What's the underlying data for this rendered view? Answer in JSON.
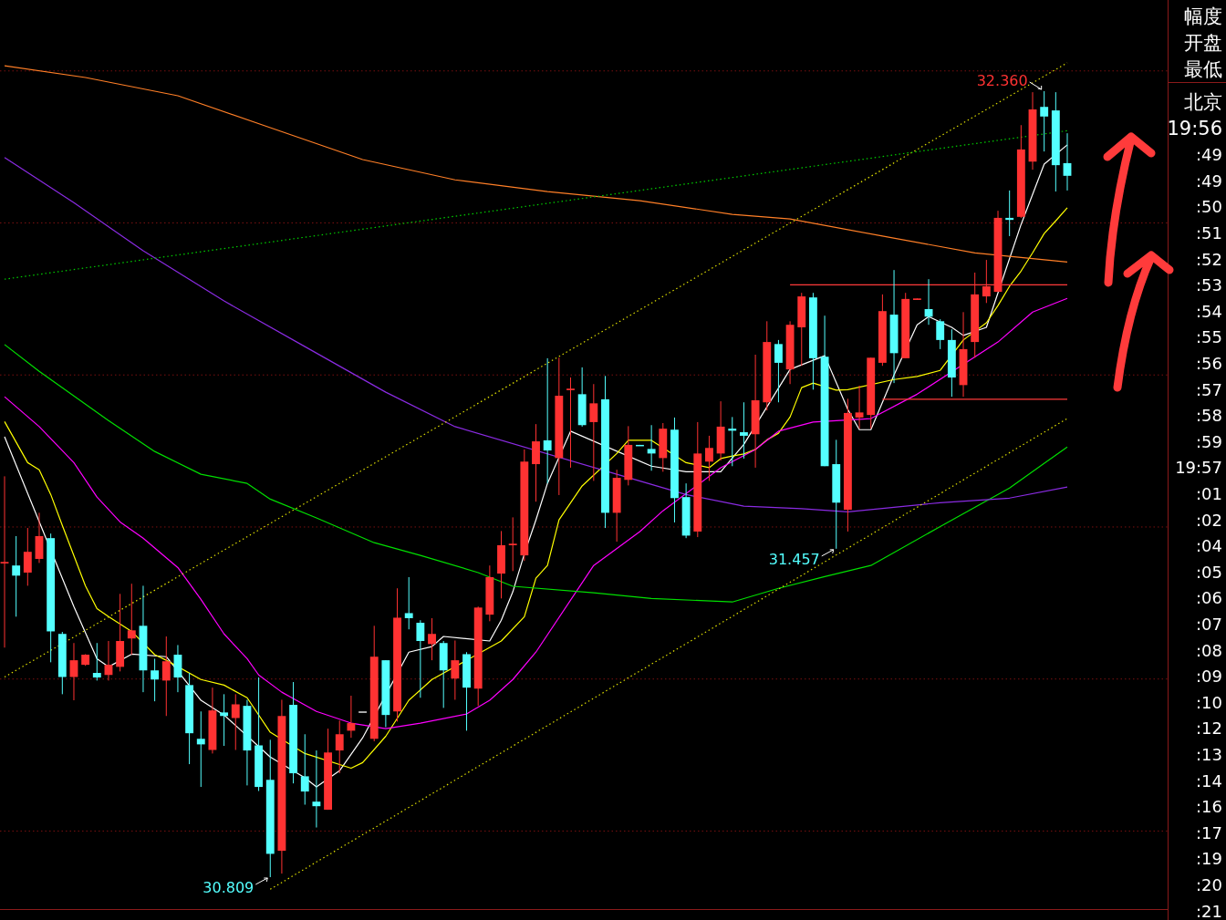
{
  "chart_data": {
    "type": "candlestick",
    "categories": [
      null,
      null,
      null,
      null,
      null,
      null,
      null,
      null,
      null,
      null,
      null,
      null,
      null,
      null,
      null,
      null,
      null,
      null,
      null,
      null,
      null,
      null,
      null,
      null,
      null,
      null,
      null,
      null,
      null,
      null,
      null,
      null,
      null,
      null,
      null,
      null,
      null,
      null,
      null,
      null,
      null,
      null,
      null,
      null,
      null,
      null,
      null,
      null,
      null,
      null,
      null,
      null,
      null,
      null,
      null,
      null,
      null,
      null,
      null,
      null,
      null,
      null,
      null,
      null,
      null,
      null,
      null,
      null,
      null,
      null,
      null,
      null,
      null,
      null,
      null,
      null,
      null,
      null,
      null,
      null,
      null,
      null,
      null,
      null,
      null,
      null,
      null,
      null,
      null,
      null,
      null,
      null,
      null
    ],
    "ohlc": [
      [
        31.428,
        31.6,
        31.262,
        31.431
      ],
      [
        31.424,
        31.482,
        31.323,
        31.404
      ],
      [
        31.41,
        31.498,
        31.384,
        31.451
      ],
      [
        31.437,
        31.528,
        31.429,
        31.482
      ],
      [
        31.478,
        31.487,
        31.233,
        31.294
      ],
      [
        31.289,
        31.293,
        31.17,
        31.204
      ],
      [
        31.204,
        31.271,
        31.158,
        31.237
      ],
      [
        31.228,
        31.249,
        31.226,
        31.248
      ],
      [
        31.212,
        31.271,
        31.197,
        31.203
      ],
      [
        31.208,
        31.275,
        31.197,
        31.228
      ],
      [
        31.224,
        31.368,
        31.215,
        31.275
      ],
      [
        31.28,
        31.388,
        31.248,
        31.296
      ],
      [
        31.305,
        31.384,
        31.174,
        31.217
      ],
      [
        31.217,
        31.24,
        31.156,
        31.199
      ],
      [
        31.197,
        31.284,
        31.127,
        31.235
      ],
      [
        31.248,
        31.267,
        31.174,
        31.203
      ],
      [
        31.188,
        31.212,
        31.032,
        31.093
      ],
      [
        31.082,
        31.136,
        30.987,
        31.071
      ],
      [
        31.06,
        31.183,
        31.053,
        31.138
      ],
      [
        31.134,
        31.17,
        31.068,
        31.127
      ],
      [
        31.123,
        31.17,
        31.06,
        31.15
      ],
      [
        31.147,
        31.159,
        30.99,
        31.059
      ],
      [
        31.069,
        31.203,
        30.979,
        30.987
      ],
      [
        31.001,
        31.08,
        30.809,
        30.855
      ],
      [
        30.861,
        31.159,
        30.816,
        31.127
      ],
      [
        31.149,
        31.194,
        30.994,
        31.014
      ],
      [
        31.008,
        31.091,
        30.952,
        30.978
      ],
      [
        30.958,
        31.059,
        30.907,
        30.949
      ],
      [
        30.942,
        31.102,
        30.942,
        31.055
      ],
      [
        31.059,
        31.118,
        31.014,
        31.091
      ],
      [
        31.098,
        31.167,
        31.084,
        31.113
      ],
      [
        31.136,
        31.136,
        31.136,
        31.136
      ],
      [
        31.082,
        31.305,
        31.077,
        31.244
      ],
      [
        31.237,
        31.237,
        31.105,
        31.129
      ],
      [
        31.136,
        31.379,
        31.116,
        31.321
      ],
      [
        31.33,
        31.401,
        31.298,
        31.32
      ],
      [
        31.311,
        31.316,
        31.163,
        31.275
      ],
      [
        31.269,
        31.32,
        31.237,
        31.289
      ],
      [
        31.271,
        31.275,
        31.143,
        31.217
      ],
      [
        31.201,
        31.276,
        31.159,
        31.237
      ],
      [
        31.249,
        31.253,
        31.098,
        31.183
      ],
      [
        31.181,
        31.343,
        31.147,
        31.341
      ],
      [
        31.327,
        31.424,
        31.314,
        31.401
      ],
      [
        31.408,
        31.492,
        31.359,
        31.464
      ],
      [
        31.464,
        31.519,
        31.413,
        31.467
      ],
      [
        31.444,
        31.653,
        31.433,
        31.629
      ],
      [
        31.624,
        31.703,
        31.55,
        31.669
      ],
      [
        31.671,
        31.833,
        31.586,
        31.651
      ],
      [
        31.636,
        31.834,
        31.563,
        31.759
      ],
      [
        31.77,
        31.795,
        31.617,
        31.773
      ],
      [
        31.762,
        31.815,
        31.698,
        31.701
      ],
      [
        31.707,
        31.782,
        31.591,
        31.744
      ],
      [
        31.752,
        31.798,
        31.498,
        31.528
      ],
      [
        31.528,
        31.613,
        31.471,
        31.597
      ],
      [
        31.593,
        31.699,
        31.582,
        31.662
      ],
      [
        31.662,
        31.662,
        31.66,
        31.66
      ],
      [
        31.654,
        31.701,
        31.611,
        31.645
      ],
      [
        31.636,
        31.705,
        31.609,
        31.694
      ],
      [
        31.692,
        31.716,
        31.509,
        31.557
      ],
      [
        31.559,
        31.586,
        31.478,
        31.483
      ],
      [
        31.491,
        31.707,
        31.48,
        31.645
      ],
      [
        31.629,
        31.68,
        31.591,
        31.656
      ],
      [
        31.645,
        31.748,
        31.631,
        31.698
      ],
      [
        31.694,
        31.717,
        31.62,
        31.69
      ],
      [
        31.687,
        31.746,
        31.635,
        31.68
      ],
      [
        31.683,
        31.84,
        31.617,
        31.75
      ],
      [
        31.746,
        31.906,
        31.73,
        31.865
      ],
      [
        31.861,
        31.869,
        31.746,
        31.824
      ],
      [
        31.811,
        31.906,
        31.782,
        31.899
      ],
      [
        31.894,
        31.962,
        31.818,
        31.955
      ],
      [
        31.953,
        31.962,
        31.771,
        31.833
      ],
      [
        31.836,
        31.917,
        31.62,
        31.62
      ],
      [
        31.624,
        31.672,
        31.457,
        31.548
      ],
      [
        31.534,
        31.753,
        31.491,
        31.725
      ],
      [
        31.716,
        31.779,
        31.694,
        31.726
      ],
      [
        31.721,
        31.834,
        31.694,
        31.834
      ],
      [
        31.824,
        31.959,
        31.818,
        31.926
      ],
      [
        31.919,
        32.007,
        31.784,
        31.843
      ],
      [
        31.833,
        31.962,
        31.833,
        31.95
      ],
      [
        31.948,
        31.951,
        31.948,
        31.951
      ],
      [
        31.93,
        31.989,
        31.899,
        31.915
      ],
      [
        31.906,
        31.91,
        31.851,
        31.869
      ],
      [
        31.869,
        31.89,
        31.757,
        31.795
      ],
      [
        31.78,
        31.924,
        31.757,
        31.851
      ],
      [
        31.865,
        32.002,
        31.834,
        31.959
      ],
      [
        31.955,
        32.027,
        31.942,
        31.975
      ],
      [
        31.964,
        32.124,
        31.964,
        32.11
      ],
      [
        32.11,
        32.164,
        32.074,
        32.106
      ],
      [
        32.112,
        32.293,
        32.11,
        32.245
      ],
      [
        32.221,
        32.358,
        32.205,
        32.324
      ],
      [
        32.329,
        32.36,
        32.241,
        32.31
      ],
      [
        32.322,
        32.358,
        32.162,
        32.214
      ],
      [
        32.218,
        32.277,
        32.164,
        32.193
      ]
    ],
    "series": [
      {
        "type": "line",
        "color": "#ffffff",
        "values": [
          31.678,
          null,
          null,
          null,
          null,
          null,
          31.343,
          null,
          31.24,
          31.224,
          null,
          31.249,
          null,
          null,
          31.244,
          null,
          null,
          31.158,
          null,
          31.129,
          null,
          null,
          null,
          31.046,
          null,
          null,
          31.005,
          30.987,
          null,
          31.019,
          null,
          31.084,
          null,
          null,
          null,
          31.253,
          null,
          31.264,
          31.284,
          null,
          null,
          null,
          31.275,
          31.316,
          31.372,
          31.447,
          31.514,
          31.586,
          null,
          31.689,
          null,
          null,
          null,
          null,
          null,
          null,
          31.62,
          null,
          null,
          31.609,
          null,
          null,
          31.609,
          null,
          31.663,
          null,
          null,
          null,
          31.811,
          null,
          null,
          31.838,
          null,
          31.732,
          31.692,
          31.692,
          null,
          31.8,
          null,
          31.899,
          31.915,
          null,
          31.894,
          31.878,
          null,
          31.894,
          31.962,
          null,
          32.097,
          null,
          32.216,
          null,
          32.254
        ]
      },
      {
        "type": "line",
        "color": "#ffff00",
        "values": [
          31.708,
          null,
          31.627,
          31.613,
          31.564,
          31.503,
          null,
          31.384,
          31.339,
          31.323,
          null,
          31.294,
          null,
          31.248,
          31.237,
          null,
          null,
          31.199,
          null,
          31.188,
          null,
          31.163,
          null,
          31.095,
          null,
          null,
          31.053,
          null,
          null,
          null,
          31.024,
          31.035,
          null,
          31.087,
          null,
          31.158,
          null,
          31.199,
          null,
          null,
          null,
          null,
          null,
          31.275,
          null,
          31.323,
          31.399,
          31.424,
          31.514,
          null,
          31.581,
          null,
          null,
          31.645,
          31.671,
          null,
          31.671,
          null,
          null,
          31.627,
          null,
          31.617,
          31.635,
          31.64,
          31.644,
          31.653,
          31.672,
          31.685,
          31.717,
          31.775,
          31.784,
          null,
          31.77,
          31.771,
          null,
          null,
          null,
          31.791,
          null,
          31.797,
          null,
          31.809,
          null,
          31.869,
          null,
          31.903,
          31.937,
          31.975,
          32.005,
          32.041,
          32.079,
          32.104,
          32.13
        ]
      },
      {
        "type": "line",
        "color": "#ff00ff",
        "values": [
          31.757,
          null,
          null,
          31.698,
          null,
          null,
          31.627,
          null,
          31.559,
          null,
          31.51,
          null,
          31.478,
          null,
          null,
          31.42,
          null,
          31.357,
          null,
          31.289,
          null,
          31.24,
          31.208,
          null,
          31.174,
          null,
          null,
          31.136,
          null,
          null,
          31.113,
          null,
          null,
          31.102,
          null,
          null,
          31.113,
          null,
          null,
          null,
          31.131,
          null,
          31.158,
          null,
          31.199,
          null,
          31.253,
          null,
          null,
          null,
          null,
          31.424,
          null,
          null,
          null,
          31.491,
          null,
          31.532,
          null,
          null,
          null,
          null,
          31.617,
          null,
          null,
          31.653,
          null,
          31.689,
          null,
          null,
          31.707,
          null,
          null,
          null,
          null,
          31.714,
          null,
          null,
          null,
          31.762,
          null,
          null,
          null,
          null,
          null,
          null,
          31.865,
          null,
          null,
          31.924,
          null,
          null,
          31.951
        ]
      },
      {
        "type": "line",
        "color": "#00e000",
        "values": [
          31.86,
          null,
          null,
          31.807,
          null,
          null,
          null,
          null,
          null,
          31.71,
          null,
          null,
          null,
          31.649,
          null,
          null,
          null,
          31.604,
          null,
          null,
          null,
          31.586,
          null,
          31.555,
          null,
          null,
          null,
          31.518,
          null,
          null,
          null,
          null,
          31.469,
          null,
          null,
          null,
          31.444,
          null,
          null,
          null,
          null,
          31.41,
          null,
          null,
          31.383,
          null,
          null,
          null,
          null,
          null,
          null,
          31.37,
          null,
          null,
          null,
          null,
          31.359,
          null,
          null,
          null,
          null,
          null,
          null,
          31.352,
          null,
          null,
          null,
          31.379,
          null,
          null,
          null,
          31.402,
          null,
          null,
          null,
          31.424,
          null,
          null,
          null,
          null,
          null,
          31.501,
          null,
          null,
          null,
          null,
          null,
          31.577,
          null,
          null,
          null,
          null,
          31.658
        ]
      },
      {
        "type": "line",
        "color": "#8a2be2",
        "values": [
          32.229,
          null,
          null,
          null,
          null,
          null,
          32.14,
          null,
          null,
          null,
          null,
          null,
          32.045,
          null,
          null,
          null,
          null,
          null,
          null,
          31.946,
          null,
          null,
          null,
          null,
          null,
          null,
          31.856,
          null,
          null,
          null,
          null,
          null,
          null,
          31.766,
          null,
          null,
          null,
          null,
          null,
          31.698,
          null,
          null,
          null,
          null,
          null,
          null,
          null,
          null,
          null,
          null,
          null,
          null,
          null,
          31.604,
          null,
          null,
          null,
          null,
          null,
          31.564,
          null,
          null,
          null,
          null,
          31.541,
          null,
          null,
          null,
          null,
          31.536,
          null,
          null,
          null,
          31.53,
          null,
          null,
          null,
          null,
          null,
          null,
          null,
          31.548,
          null,
          null,
          null,
          null,
          null,
          31.557,
          null,
          null,
          null,
          null,
          31.579
        ]
      },
      {
        "type": "line",
        "color": "#ff7f27",
        "values": [
          32.41,
          null,
          null,
          null,
          null,
          null,
          null,
          32.387,
          null,
          null,
          null,
          null,
          null,
          null,
          null,
          32.351,
          null,
          null,
          null,
          null,
          null,
          null,
          null,
          32.288,
          null,
          null,
          null,
          null,
          null,
          null,
          null,
          32.225,
          null,
          null,
          null,
          null,
          null,
          null,
          null,
          32.185,
          null,
          null,
          null,
          null,
          null,
          null,
          null,
          32.162,
          null,
          null,
          null,
          null,
          null,
          null,
          null,
          32.144,
          null,
          null,
          null,
          null,
          null,
          null,
          null,
          32.117,
          null,
          null,
          null,
          null,
          32.108,
          null,
          null,
          null,
          null,
          null,
          null,
          null,
          32.074,
          null,
          null,
          null,
          null,
          null,
          null,
          null,
          32.041,
          null,
          null,
          null,
          null,
          null,
          null,
          null,
          32.023
        ]
      },
      {
        "type": "line",
        "color": "#e0e000",
        "line_style": "dotted",
        "values": [
          31.204,
          null,
          null,
          null,
          null,
          null,
          null,
          null,
          null,
          null,
          null,
          null,
          null,
          null,
          null,
          null,
          null,
          null,
          null,
          null,
          null,
          null,
          null,
          null,
          null,
          null,
          null,
          null,
          null,
          null,
          null,
          null,
          null,
          null,
          null,
          null,
          null,
          null,
          null,
          null,
          null,
          null,
          null,
          null,
          null,
          null,
          null,
          null,
          null,
          null,
          null,
          null,
          null,
          null,
          null,
          null,
          null,
          null,
          null,
          null,
          null,
          null,
          null,
          null,
          null,
          null,
          null,
          null,
          null,
          null,
          null,
          null,
          null,
          null,
          null,
          null,
          null,
          null,
          null,
          null,
          null,
          null,
          null,
          null,
          null,
          null,
          null,
          null,
          null,
          null,
          null,
          null,
          32.416
        ]
      },
      {
        "type": "line",
        "color": "#e0e000",
        "line_style": "dotted",
        "values": [
          null,
          null,
          null,
          null,
          null,
          null,
          null,
          null,
          null,
          null,
          null,
          null,
          null,
          null,
          null,
          null,
          null,
          null,
          null,
          null,
          null,
          null,
          null,
          30.785,
          null,
          null,
          null,
          null,
          null,
          null,
          null,
          null,
          null,
          null,
          null,
          null,
          null,
          null,
          null,
          null,
          null,
          null,
          null,
          null,
          null,
          null,
          null,
          null,
          null,
          null,
          null,
          null,
          null,
          null,
          null,
          null,
          null,
          null,
          null,
          null,
          null,
          null,
          null,
          null,
          null,
          null,
          null,
          null,
          null,
          null,
          null,
          null,
          null,
          null,
          null,
          null,
          null,
          null,
          null,
          null,
          null,
          null,
          null,
          null,
          null,
          null,
          null,
          null,
          null,
          null,
          null,
          null,
          31.714
        ]
      },
      {
        "type": "line",
        "color": "#00d000",
        "line_style": "dotted",
        "values": [
          31.989,
          null,
          null,
          null,
          null,
          null,
          null,
          null,
          null,
          null,
          null,
          null,
          null,
          null,
          null,
          null,
          null,
          null,
          null,
          null,
          null,
          null,
          null,
          null,
          null,
          null,
          null,
          null,
          null,
          null,
          null,
          null,
          null,
          null,
          null,
          null,
          null,
          null,
          null,
          null,
          null,
          null,
          null,
          null,
          null,
          null,
          null,
          null,
          null,
          null,
          null,
          null,
          null,
          null,
          null,
          null,
          null,
          null,
          null,
          null,
          null,
          null,
          null,
          null,
          null,
          null,
          null,
          null,
          null,
          null,
          null,
          null,
          null,
          null,
          null,
          null,
          null,
          null,
          null,
          null,
          null,
          null,
          null,
          null,
          null,
          null,
          null,
          null,
          null,
          null,
          null,
          null,
          32.282
        ]
      },
      {
        "type": "line",
        "color": "#ff3b3b",
        "values": [
          null,
          null,
          null,
          null,
          null,
          null,
          null,
          null,
          null,
          null,
          null,
          null,
          null,
          null,
          null,
          null,
          null,
          null,
          null,
          null,
          null,
          null,
          null,
          null,
          null,
          null,
          null,
          null,
          null,
          null,
          null,
          null,
          null,
          null,
          null,
          null,
          null,
          null,
          null,
          null,
          null,
          null,
          null,
          null,
          null,
          null,
          null,
          null,
          null,
          null,
          null,
          null,
          null,
          null,
          null,
          null,
          null,
          null,
          null,
          null,
          null,
          null,
          null,
          null,
          null,
          null,
          null,
          null,
          31.978,
          null,
          null,
          null,
          null,
          null,
          null,
          null,
          null,
          null,
          null,
          null,
          null,
          null,
          null,
          null,
          null,
          null,
          null,
          null,
          null,
          null,
          null,
          null,
          31.978
        ]
      },
      {
        "type": "line",
        "color": "#ff3b3b",
        "values": [
          null,
          null,
          null,
          null,
          null,
          null,
          null,
          null,
          null,
          null,
          null,
          null,
          null,
          null,
          null,
          null,
          null,
          null,
          null,
          null,
          null,
          null,
          null,
          null,
          null,
          null,
          null,
          null,
          null,
          null,
          null,
          null,
          null,
          null,
          null,
          null,
          null,
          null,
          null,
          null,
          null,
          null,
          null,
          null,
          null,
          null,
          null,
          null,
          null,
          null,
          null,
          null,
          null,
          null,
          null,
          null,
          null,
          null,
          null,
          null,
          null,
          null,
          null,
          null,
          null,
          null,
          null,
          null,
          null,
          null,
          null,
          null,
          null,
          null,
          null,
          null,
          31.752,
          null,
          null,
          null,
          null,
          null,
          null,
          null,
          null,
          null,
          null,
          null,
          null,
          null,
          null,
          null,
          31.752
        ]
      }
    ],
    "yticks": [
      {
        "value": 30.9,
        "label": null
      },
      {
        "value": 31.2,
        "label": null
      },
      {
        "value": 31.5,
        "label": null
      },
      {
        "value": 31.8,
        "label": null
      },
      {
        "value": 32.1,
        "label": null
      },
      {
        "value": 32.4,
        "label": null
      }
    ],
    "grid": "y",
    "tick_labels": false,
    "annotations": [
      "32.360",
      "31.457",
      "30.809",
      "幅度",
      "开盘",
      "最低",
      "北京",
      "19:56",
      ":49",
      ":49",
      ":50",
      ":51",
      ":52",
      ":53",
      ":54",
      ":55",
      ":56",
      ":57",
      ":58",
      ":59",
      "19:57",
      ":01",
      ":02",
      ":04",
      ":05",
      ":06",
      ":07",
      ":08",
      ":09",
      ":10",
      ":12",
      ":13",
      ":14",
      ":16",
      ":17",
      ":19",
      ":20",
      ":21"
    ]
  }
}
